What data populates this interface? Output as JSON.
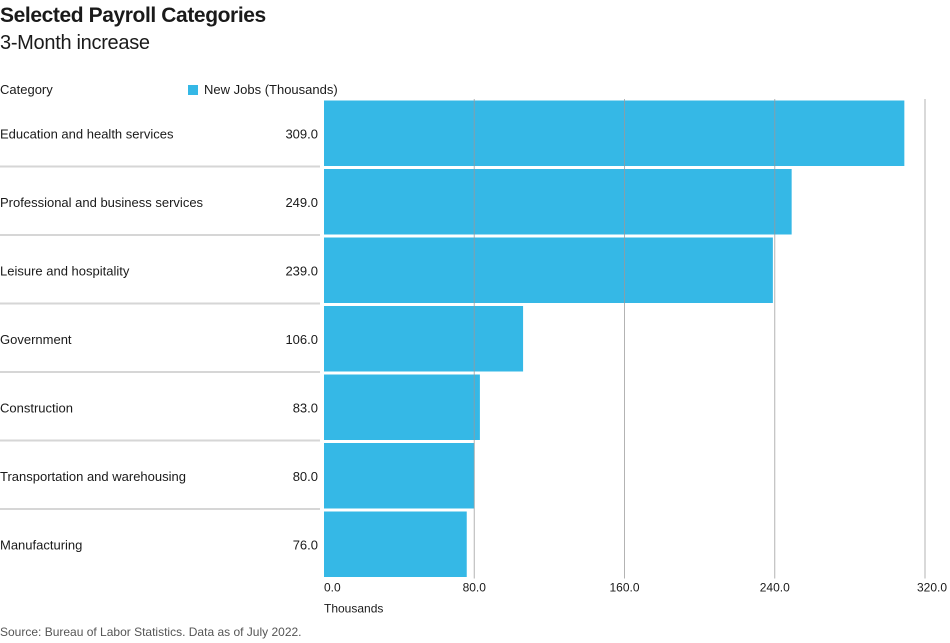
{
  "title": "Selected Payroll Categories",
  "subtitle": "3-Month increase",
  "legend_header": "Category",
  "source": "Source: Bureau of Labor Statistics. Data as of July 2022.",
  "colors": {
    "bar": "#35b8e6",
    "grid": "#9a9a9a",
    "separator": "#d6d6d6",
    "text": "#1a1a1a"
  },
  "chart_data": {
    "type": "bar",
    "orientation": "horizontal",
    "title": "Selected Payroll Categories",
    "subtitle": "3-Month increase",
    "categories": [
      "Education and health services",
      "Professional and business services",
      "Leisure and hospitality",
      "Government",
      "Construction",
      "Transportation and warehousing",
      "Manufacturing"
    ],
    "series": [
      {
        "name": "New Jobs (Thousands)",
        "values": [
          309.0,
          249.0,
          239.0,
          106.0,
          83.0,
          80.0,
          76.0
        ]
      }
    ],
    "value_labels": [
      "309.0",
      "249.0",
      "239.0",
      "106.0",
      "83.0",
      "80.0",
      "76.0"
    ],
    "xlabel": "Thousands",
    "ylabel": "Category",
    "xlim": [
      0,
      320
    ],
    "xticks": [
      0,
      80,
      160,
      240,
      320
    ],
    "xtick_labels": [
      "0.0",
      "80.0",
      "160.0",
      "240.0",
      "320.0"
    ],
    "grid": true,
    "legend_position": "top"
  }
}
